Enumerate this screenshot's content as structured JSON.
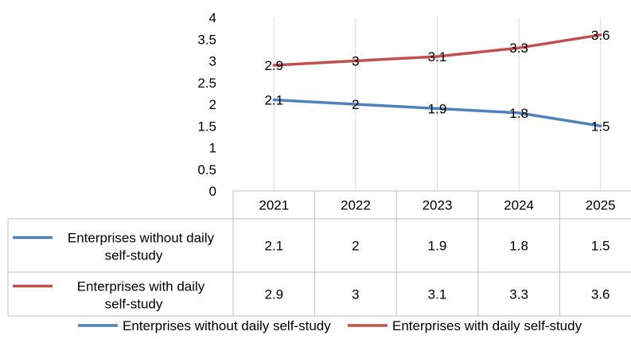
{
  "chart_data": {
    "type": "line",
    "title": "",
    "xlabel": "",
    "ylabel": "",
    "categories": [
      "2021",
      "2022",
      "2023",
      "2024",
      "2025"
    ],
    "ylim": [
      0,
      4
    ],
    "yticks": [
      "0",
      "0.5",
      "1",
      "1.5",
      "2",
      "2.5",
      "3",
      "3.5",
      "4"
    ],
    "grid": "vertical",
    "legend_position": "bottom",
    "data_table": true,
    "series": [
      {
        "name": "Enterprises without daily self-study",
        "table_label_lines": [
          "Enterprises without daily",
          "self-study"
        ],
        "color": "#4f81bd",
        "values": [
          2.1,
          2,
          1.9,
          1.8,
          1.5
        ],
        "labels": [
          "2.1",
          "2",
          "1.9",
          "1.8",
          "1.5"
        ]
      },
      {
        "name": "Enterprises with daily self-study",
        "table_label_lines": [
          "Enterprises with daily",
          "self-study"
        ],
        "color": "#c0504d",
        "values": [
          2.9,
          3,
          3.1,
          3.3,
          3.6
        ],
        "labels": [
          "2.9",
          "3",
          "3.1",
          "3.3",
          "3.6"
        ]
      }
    ]
  }
}
